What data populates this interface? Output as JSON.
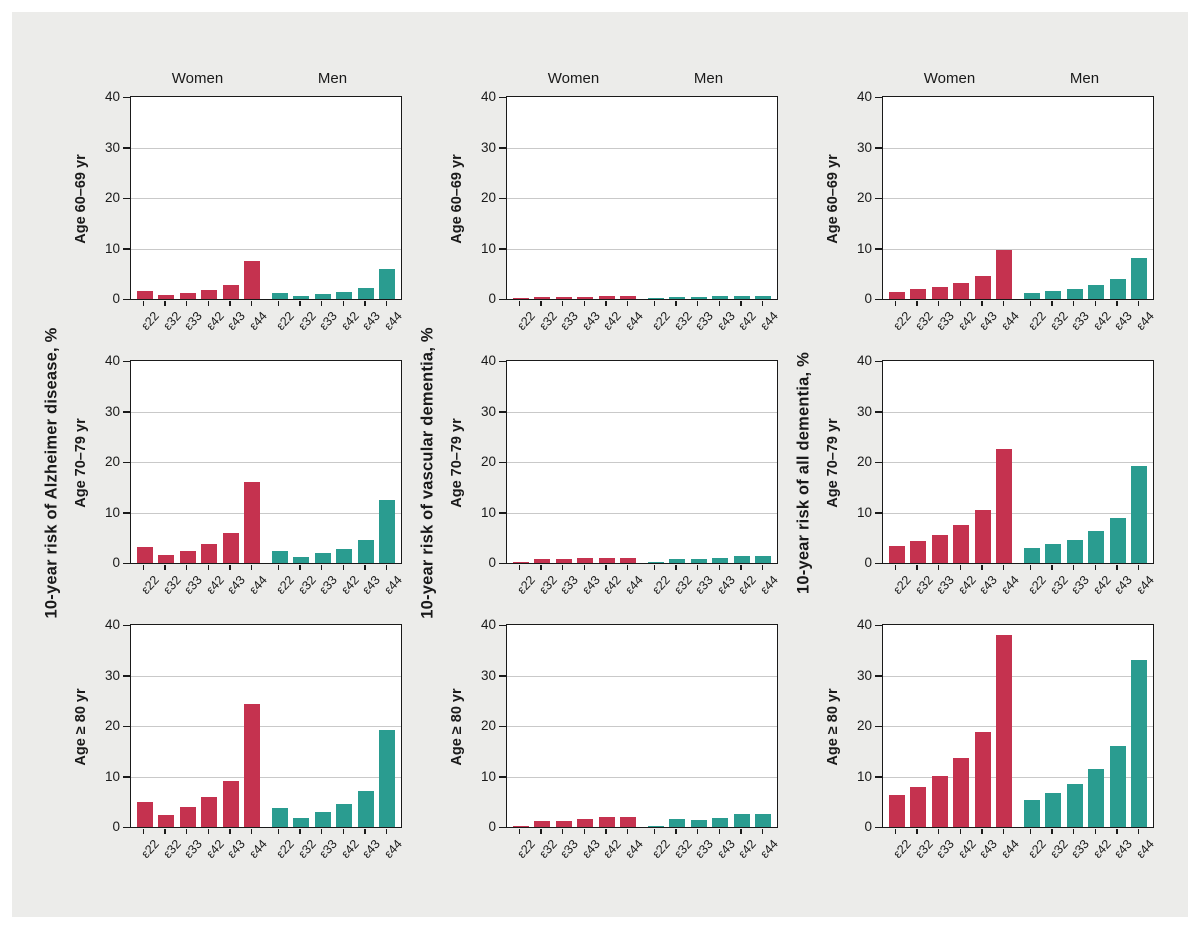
{
  "figure": {
    "colors": {
      "women_bar": "#c5324f",
      "men_bar": "#2a9c90",
      "background": "#ececea",
      "plot_background": "#ffffff",
      "gridline": "#c9c9c9",
      "frame": "#1a1a1a"
    },
    "group_headers": [
      "Women",
      "Men"
    ]
  },
  "chart_data": [
    {
      "type": "bar",
      "title": "10-year risk of Alzheimer disease, %",
      "ylabel": "10-year risk of Alzheimer disease, %",
      "xlabel": "",
      "categories": [
        "ε22",
        "ε32",
        "ε33",
        "ε42",
        "ε43",
        "ε44"
      ],
      "y_ticks": [
        0,
        10,
        20,
        30,
        40
      ],
      "ylim": [
        0,
        40
      ],
      "grid": true,
      "legend_position": "none",
      "panels": [
        {
          "age_label": "Age 60–69 yr",
          "series": [
            {
              "name": "Women",
              "values": [
                1.5,
                0.8,
                1.2,
                1.8,
                2.7,
                7.5
              ]
            },
            {
              "name": "Men",
              "values": [
                1.2,
                0.6,
                0.9,
                1.4,
                2.2,
                5.9
              ]
            }
          ]
        },
        {
          "age_label": "Age 70–79 yr",
          "series": [
            {
              "name": "Women",
              "values": [
                3.2,
                1.5,
                2.4,
                3.7,
                5.9,
                16.0
              ]
            },
            {
              "name": "Men",
              "values": [
                2.4,
                1.1,
                1.9,
                2.8,
                4.6,
                12.5
              ]
            }
          ]
        },
        {
          "age_label": "Age ≥ 80 yr",
          "series": [
            {
              "name": "Women",
              "values": [
                4.9,
                2.4,
                3.9,
                5.9,
                9.2,
                24.4
              ]
            },
            {
              "name": "Men",
              "values": [
                3.8,
                1.8,
                3.0,
                4.5,
                7.1,
                19.2
              ]
            }
          ]
        }
      ]
    },
    {
      "type": "bar",
      "title": "10-year risk of vascular dementia, %",
      "ylabel": "10-year risk of vascular dementia, %",
      "xlabel": "",
      "categories": [
        "ε22",
        "ε32",
        "ε33",
        "ε43",
        "ε42",
        "ε44"
      ],
      "y_ticks": [
        0,
        10,
        20,
        30,
        40
      ],
      "ylim": [
        0,
        40
      ],
      "grid": true,
      "legend_position": "none",
      "panels": [
        {
          "age_label": "Age 60–69 yr",
          "series": [
            {
              "name": "Women",
              "values": [
                0.1,
                0.3,
                0.3,
                0.4,
                0.5,
                0.5
              ]
            },
            {
              "name": "Men",
              "values": [
                0.1,
                0.4,
                0.4,
                0.5,
                0.6,
                0.6
              ]
            }
          ]
        },
        {
          "age_label": "Age 70–79 yr",
          "series": [
            {
              "name": "Women",
              "values": [
                0.1,
                0.7,
                0.7,
                0.9,
                1.0,
                1.0
              ]
            },
            {
              "name": "Men",
              "values": [
                0.1,
                0.8,
                0.7,
                0.9,
                1.3,
                1.3
              ]
            }
          ]
        },
        {
          "age_label": "Age ≥ 80 yr",
          "series": [
            {
              "name": "Women",
              "values": [
                0.1,
                1.2,
                1.1,
                1.5,
                2.0,
                2.0
              ]
            },
            {
              "name": "Men",
              "values": [
                0.1,
                1.6,
                1.4,
                1.8,
                2.5,
                2.5
              ]
            }
          ]
        }
      ]
    },
    {
      "type": "bar",
      "title": "10-year risk of all dementia, %",
      "ylabel": "10-year risk of all dementia, %",
      "xlabel": "",
      "categories": [
        "ε22",
        "ε32",
        "ε33",
        "ε42",
        "ε43",
        "ε44"
      ],
      "y_ticks": [
        0,
        10,
        20,
        30,
        40
      ],
      "ylim": [
        0,
        40
      ],
      "grid": true,
      "legend_position": "none",
      "panels": [
        {
          "age_label": "Age 60–69 yr",
          "series": [
            {
              "name": "Women",
              "values": [
                1.4,
                1.9,
                2.3,
                3.2,
                4.5,
                9.8
              ]
            },
            {
              "name": "Men",
              "values": [
                1.2,
                1.6,
                1.9,
                2.7,
                3.9,
                8.2
              ]
            }
          ]
        },
        {
          "age_label": "Age 70–79 yr",
          "series": [
            {
              "name": "Women",
              "values": [
                3.4,
                4.4,
                5.5,
                7.6,
                10.5,
                22.5
              ]
            },
            {
              "name": "Men",
              "values": [
                2.9,
                3.7,
                4.6,
                6.4,
                9.0,
                19.3
              ]
            }
          ]
        },
        {
          "age_label": "Age ≥ 80 yr",
          "series": [
            {
              "name": "Women",
              "values": [
                6.3,
                8.0,
                10.0,
                13.7,
                18.9,
                38.0
              ]
            },
            {
              "name": "Men",
              "values": [
                5.3,
                6.7,
                8.5,
                11.5,
                16.0,
                33.0
              ]
            }
          ]
        }
      ]
    }
  ]
}
